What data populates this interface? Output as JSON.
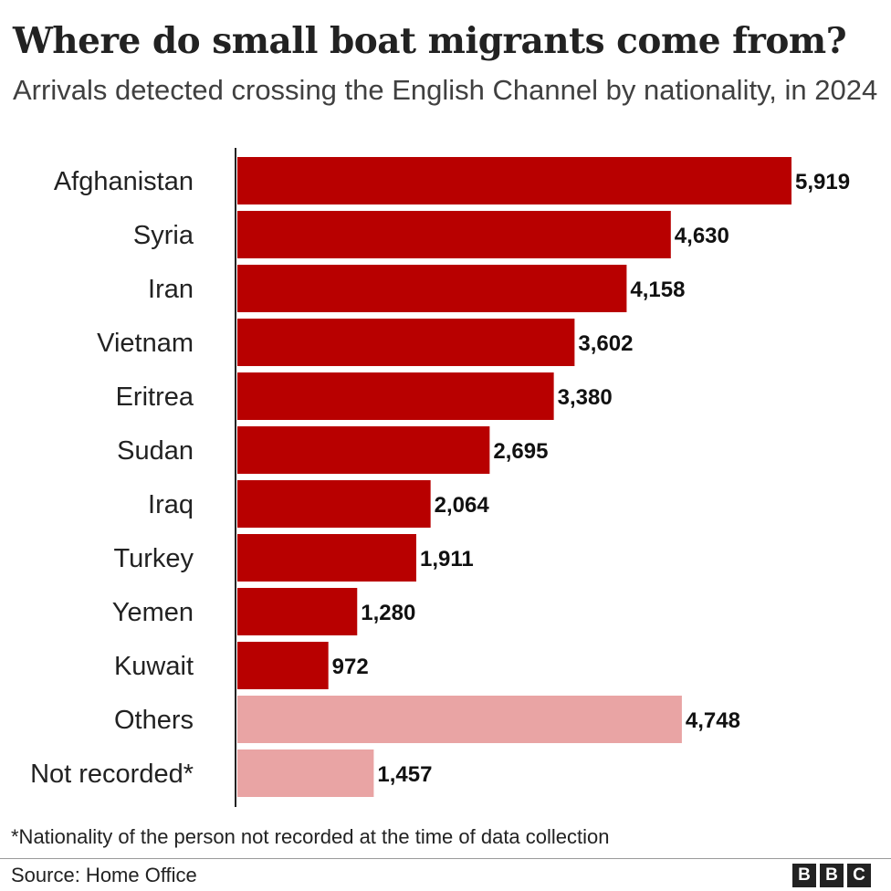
{
  "title": "Where do small boat migrants come from?",
  "subtitle": "Arrivals detected crossing the English Channel by nationality, in 2024",
  "footnote": "*Nationality of the person not recorded at the time of data collection",
  "source": "Source: Home Office",
  "logo": [
    "B",
    "B",
    "C"
  ],
  "colors": {
    "primary": "#b80000",
    "secondary": "#e9a4a4",
    "axis": "#222222"
  },
  "chart_data": {
    "type": "bar",
    "orientation": "horizontal",
    "title": "Where do small boat migrants come from?",
    "subtitle": "Arrivals detected crossing the English Channel by nationality, in 2024",
    "categories": [
      "Afghanistan",
      "Syria",
      "Iran",
      "Vietnam",
      "Eritrea",
      "Sudan",
      "Iraq",
      "Turkey",
      "Yemen",
      "Kuwait",
      "Others",
      "Not recorded*"
    ],
    "values": [
      5919,
      4630,
      4158,
      3602,
      3380,
      2695,
      2064,
      1911,
      1280,
      972,
      4748,
      1457
    ],
    "value_labels": [
      "5,919",
      "4,630",
      "4,158",
      "3,602",
      "3,380",
      "2,695",
      "2,064",
      "1,911",
      "1,280",
      "972",
      "4,748",
      "1,457"
    ],
    "highlight": [
      "primary",
      "primary",
      "primary",
      "primary",
      "primary",
      "primary",
      "primary",
      "primary",
      "primary",
      "primary",
      "secondary",
      "secondary"
    ],
    "xlim": [
      0,
      5919
    ],
    "xlabel": "",
    "ylabel": "",
    "grid": false
  }
}
